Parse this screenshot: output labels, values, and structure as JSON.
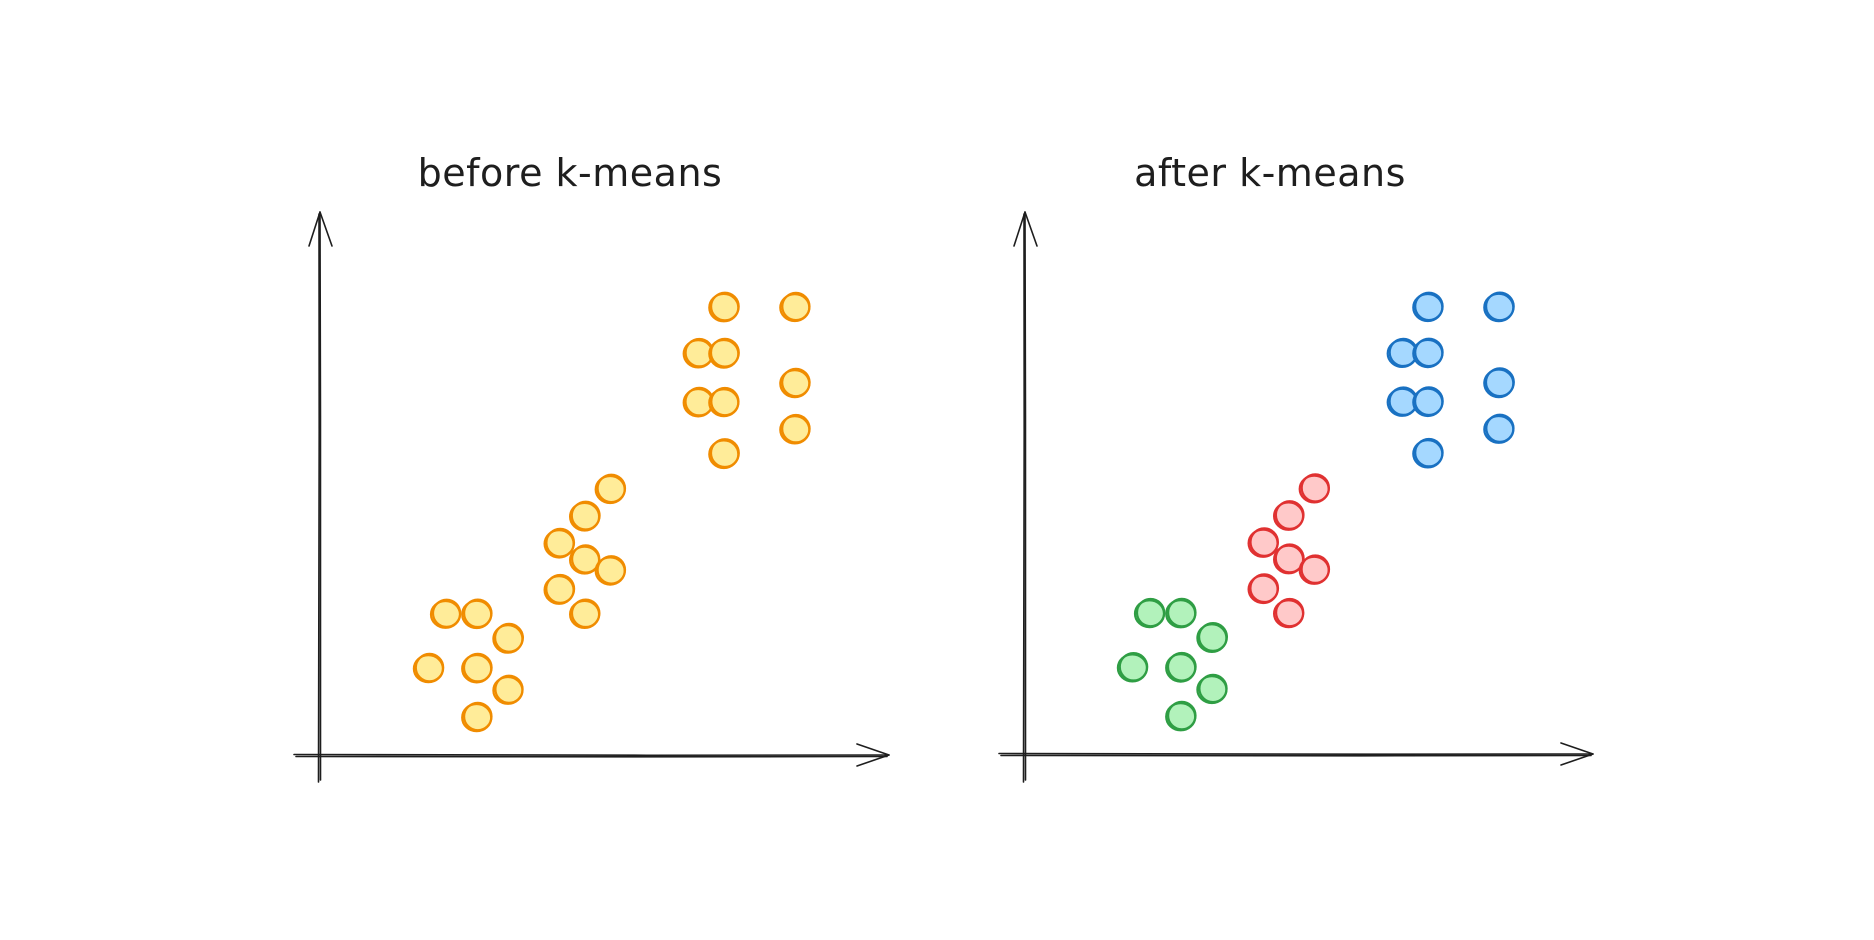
{
  "chart_data": [
    {
      "type": "scatter",
      "title": "before k-means",
      "xlabel": "",
      "ylabel": "",
      "grid": false,
      "xlim": [
        0,
        100
      ],
      "ylim": [
        0,
        100
      ],
      "series": [
        {
          "color": "#f08c00",
          "fill": "#ffec99",
          "points": [
            [
              22,
              26
            ],
            [
              27.5,
              26
            ],
            [
              33,
              21.5
            ],
            [
              19,
              16
            ],
            [
              27.5,
              16
            ],
            [
              33,
              12
            ],
            [
              27.5,
              7
            ],
            [
              46.5,
              44
            ],
            [
              51,
              49
            ],
            [
              42,
              39
            ],
            [
              46.5,
              36
            ],
            [
              51,
              34
            ],
            [
              42,
              30.5
            ],
            [
              46.5,
              26
            ],
            [
              71,
              82.5
            ],
            [
              83.5,
              82.5
            ],
            [
              66.5,
              74
            ],
            [
              71,
              74
            ],
            [
              83.5,
              68.5
            ],
            [
              66.5,
              65
            ],
            [
              71,
              65
            ],
            [
              83.5,
              60
            ],
            [
              71,
              55.5
            ]
          ]
        }
      ]
    },
    {
      "type": "scatter",
      "title": "after k-means",
      "xlabel": "",
      "ylabel": "",
      "grid": false,
      "xlim": [
        0,
        100
      ],
      "ylim": [
        0,
        100
      ],
      "series": [
        {
          "color": "#2f9e44",
          "fill": "#b2f2bb",
          "points": [
            [
              22,
              26
            ],
            [
              27.5,
              26
            ],
            [
              33,
              21.5
            ],
            [
              19,
              16
            ],
            [
              27.5,
              16
            ],
            [
              33,
              12
            ],
            [
              27.5,
              7
            ]
          ]
        },
        {
          "color": "#e03131",
          "fill": "#ffc9c9",
          "points": [
            [
              46.5,
              44
            ],
            [
              51,
              49
            ],
            [
              42,
              39
            ],
            [
              46.5,
              36
            ],
            [
              51,
              34
            ],
            [
              42,
              30.5
            ],
            [
              46.5,
              26
            ]
          ]
        },
        {
          "color": "#1971c2",
          "fill": "#a5d8ff",
          "points": [
            [
              71,
              82.5
            ],
            [
              83.5,
              82.5
            ],
            [
              66.5,
              74
            ],
            [
              71,
              74
            ],
            [
              83.5,
              68.5
            ],
            [
              66.5,
              65
            ],
            [
              71,
              65
            ],
            [
              83.5,
              60
            ],
            [
              71,
              55.5
            ]
          ]
        }
      ]
    }
  ]
}
